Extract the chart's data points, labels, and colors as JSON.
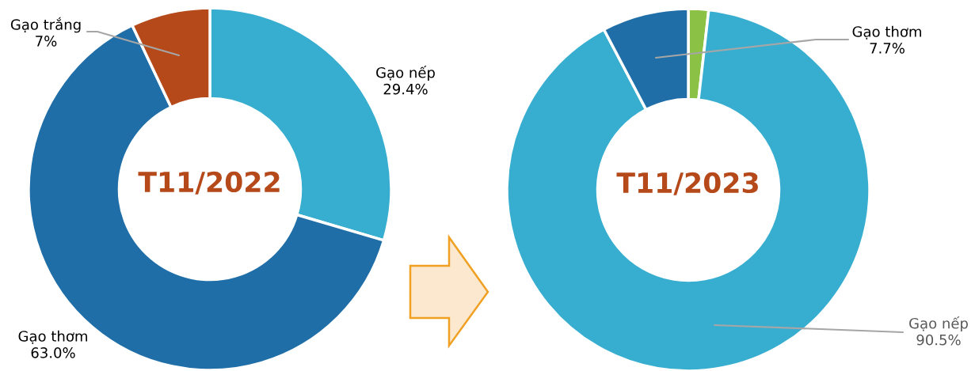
{
  "chart_data": [
    {
      "type": "donut",
      "title": "T11/2022",
      "categories": [
        "Gạo nếp",
        "Gạo thơm",
        "Gạo trắng"
      ],
      "values": [
        29.4,
        63.0,
        7
      ],
      "colors": [
        "#37aed0",
        "#1f6ea8",
        "#b5491a"
      ],
      "value_labels": [
        "29.4%",
        "63.0%",
        "7%"
      ]
    },
    {
      "type": "donut",
      "title": "T11/2023",
      "categories": [
        null,
        "Gạo nếp",
        "Gạo thơm"
      ],
      "values": [
        1.8,
        90.5,
        7.7
      ],
      "colors": [
        "#8bc145",
        "#37aed0",
        "#1f6ea8"
      ],
      "value_labels": [
        null,
        "90.5%",
        "7.7%"
      ]
    }
  ]
}
